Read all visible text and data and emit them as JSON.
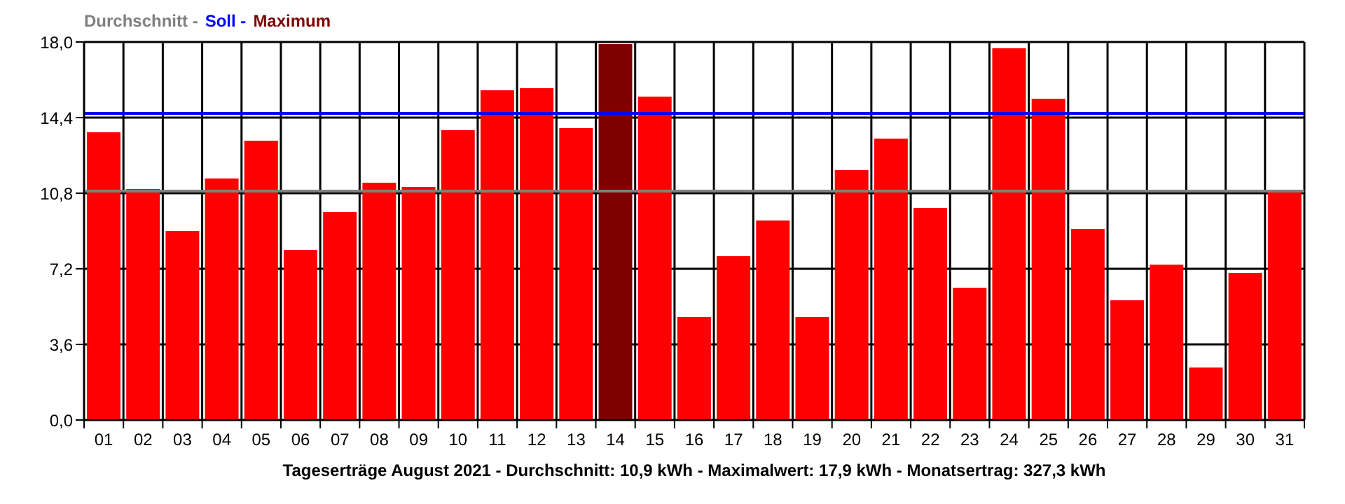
{
  "chart_data": {
    "type": "bar",
    "xlabel": "Tageserträge August 2021 - Durchschnitt: 10,9 kWh - Maximalwert: 17,9 kWh - Monatsertrag: 327,3 kWh",
    "categories": [
      "01",
      "02",
      "03",
      "04",
      "05",
      "06",
      "07",
      "08",
      "09",
      "10",
      "11",
      "12",
      "13",
      "14",
      "15",
      "16",
      "17",
      "18",
      "19",
      "20",
      "21",
      "22",
      "23",
      "24",
      "25",
      "26",
      "27",
      "28",
      "29",
      "30",
      "31"
    ],
    "values": [
      13.7,
      11.0,
      9.0,
      11.5,
      13.3,
      8.1,
      9.9,
      11.3,
      11.1,
      13.8,
      15.7,
      15.8,
      13.9,
      17.9,
      15.4,
      4.9,
      7.8,
      9.5,
      4.9,
      11.9,
      13.4,
      10.1,
      6.3,
      17.7,
      15.3,
      9.1,
      5.7,
      7.4,
      2.5,
      7.0,
      10.9
    ],
    "colors": [
      "#ff0000",
      "#ff0000",
      "#ff0000",
      "#ff0000",
      "#ff0000",
      "#ff0000",
      "#ff0000",
      "#ff0000",
      "#ff0000",
      "#ff0000",
      "#ff0000",
      "#ff0000",
      "#ff0000",
      "#800000",
      "#ff0000",
      "#ff0000",
      "#ff0000",
      "#ff0000",
      "#ff0000",
      "#ff0000",
      "#ff0000",
      "#ff0000",
      "#ff0000",
      "#ff0000",
      "#ff0000",
      "#ff0000",
      "#ff0000",
      "#ff0000",
      "#ff0000",
      "#ff0000",
      "#ff0000"
    ],
    "ylim": [
      0,
      18
    ],
    "yticks": [
      {
        "value": 0,
        "label": "0,0"
      },
      {
        "value": 3.6,
        "label": "3,6"
      },
      {
        "value": 7.2,
        "label": "7,2"
      },
      {
        "value": 10.8,
        "label": "10,8"
      },
      {
        "value": 14.4,
        "label": "14,4"
      },
      {
        "value": 18,
        "label": "18,0"
      }
    ],
    "ref_lines": [
      {
        "axis": "y",
        "value": 10.9,
        "label": "Durchschnitt -",
        "color": "#808080"
      },
      {
        "axis": "y",
        "value": 14.6,
        "label": "Soll -",
        "color": "#0000ff"
      }
    ],
    "annotations": [
      "Maximum"
    ],
    "grid": true
  }
}
